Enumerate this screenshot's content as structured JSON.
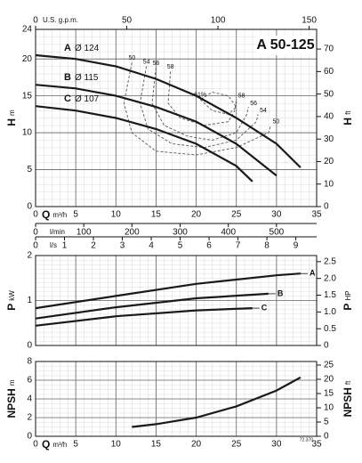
{
  "chart_data": [
    {
      "type": "line",
      "title": "A 50-125",
      "x_label": "Q",
      "x_unit": "m³/h",
      "y_label": "H",
      "y_unit": "m",
      "y2_label": "H",
      "y2_unit": "ft",
      "xlim": [
        0,
        35
      ],
      "xticks": [
        0,
        5,
        10,
        15,
        20,
        25,
        30,
        35
      ],
      "show_xtick_labels": true,
      "ylim": [
        0,
        24
      ],
      "yticks": [
        0,
        5,
        10,
        15,
        20,
        24
      ],
      "y2lim": [
        0,
        78.74
      ],
      "y2ticks": [
        0,
        10,
        20,
        30,
        40,
        50,
        60,
        70
      ],
      "extra_axes": [
        {
          "label": "U.S. g.p.m.",
          "position": "top",
          "xlim": [
            0,
            154.1
          ],
          "xticks": [
            0,
            50,
            100,
            150
          ]
        },
        {
          "label": "l/min",
          "position": "bottom",
          "xlim": [
            0,
            583.3
          ],
          "xticks": [
            0,
            100,
            200,
            300,
            400,
            500
          ]
        },
        {
          "label": "l/s",
          "position": "bottom",
          "xlim": [
            0,
            9.72
          ],
          "xticks": [
            0,
            1,
            2,
            3,
            4,
            5,
            6,
            7,
            8,
            9
          ]
        }
      ],
      "series": [
        {
          "name": "A",
          "label": "Ø 124",
          "color": "#1a1a1a",
          "x": [
            0,
            5,
            10,
            15,
            20,
            25,
            30,
            33
          ],
          "values": [
            20.5,
            20,
            19,
            17.3,
            15,
            12,
            8.5,
            5.3
          ]
        },
        {
          "name": "B",
          "label": "Ø 115",
          "color": "#1a1a1a",
          "x": [
            0,
            5,
            10,
            15,
            20,
            25,
            30
          ],
          "values": [
            16.5,
            16,
            15,
            13.5,
            11.5,
            8.5,
            4.2
          ]
        },
        {
          "name": "C",
          "label": "Ø 107",
          "color": "#1a1a1a",
          "x": [
            0,
            5,
            10,
            15,
            20,
            25,
            27
          ],
          "values": [
            13.6,
            13,
            12,
            10.5,
            8.5,
            5.5,
            3.4
          ]
        }
      ],
      "efficiency_curves": [
        {
          "name": "50",
          "color": "#555555",
          "x": [
            12,
            11,
            12,
            15,
            20,
            25,
            29,
            29.3
          ],
          "values": [
            19.5,
            14,
            10,
            7.5,
            7,
            8,
            10,
            11
          ]
        },
        {
          "name": "54",
          "color": "#555555",
          "x": [
            13.8,
            13,
            14,
            17,
            21,
            25,
            27.5,
            27.7
          ],
          "values": [
            19,
            14,
            10.5,
            8.5,
            8,
            9,
            11.5,
            12.5
          ]
        },
        {
          "name": "56",
          "color": "#555555",
          "x": [
            15,
            14.5,
            16,
            19,
            22,
            25,
            26.3,
            26.5
          ],
          "values": [
            18.8,
            14,
            11,
            9.5,
            9,
            10,
            12.5,
            13.5
          ]
        },
        {
          "name": "58",
          "color": "#555555",
          "x": [
            16.8,
            16.5,
            18,
            21,
            24,
            24.8,
            25
          ],
          "values": [
            18.3,
            14,
            12,
            11,
            11.5,
            13,
            14.5
          ]
        },
        {
          "name": "61%",
          "color": "#555555",
          "x": [
            20.5,
            22,
            24,
            25,
            24,
            22,
            20.5
          ],
          "values": [
            14.5,
            13,
            12.5,
            13.5,
            15,
            15.5,
            14.5
          ]
        }
      ],
      "grid": true
    },
    {
      "type": "line",
      "y_label": "P",
      "y_unit": "kW",
      "y2_label": "P",
      "y2_unit": "HP",
      "xlim": [
        0,
        35
      ],
      "xticks": [
        0,
        5,
        10,
        15,
        20,
        25,
        30,
        35
      ],
      "show_xtick_labels": false,
      "ylim": [
        0,
        2
      ],
      "yticks": [
        0,
        1,
        2
      ],
      "y2lim": [
        0,
        2.682
      ],
      "y2ticks": [
        0,
        0.5,
        {
          "value": 1,
          "label": "1.0"
        },
        1.5,
        {
          "value": 2,
          "label": "2.0"
        },
        2.5
      ],
      "series": [
        {
          "name": "A",
          "color": "#1a1a1a",
          "x": [
            0,
            10,
            20,
            30,
            33
          ],
          "values": [
            0.83,
            1.1,
            1.37,
            1.56,
            1.6
          ]
        },
        {
          "name": "B",
          "color": "#1a1a1a",
          "x": [
            0,
            10,
            20,
            29
          ],
          "values": [
            0.6,
            0.85,
            1.05,
            1.15
          ]
        },
        {
          "name": "C",
          "color": "#1a1a1a",
          "x": [
            0,
            10,
            20,
            27
          ],
          "values": [
            0.44,
            0.65,
            0.78,
            0.83
          ]
        }
      ],
      "grid": true
    },
    {
      "type": "line",
      "x_label": "Q",
      "x_unit": "m³/h",
      "y_label": "NPSH",
      "y_unit": "m",
      "y2_label": "NPSH",
      "y2_unit": "ft",
      "xlim": [
        0,
        35
      ],
      "xticks": [
        0,
        5,
        10,
        15,
        20,
        25,
        30,
        35
      ],
      "show_xtick_labels": true,
      "ylim": [
        0,
        8
      ],
      "yticks": [
        0,
        2,
        4,
        6,
        8
      ],
      "y2lim": [
        0,
        26.25
      ],
      "y2ticks": [
        0,
        5,
        10,
        15,
        20,
        25
      ],
      "series": [
        {
          "color": "#1a1a1a",
          "x": [
            12,
            15,
            20,
            25,
            30,
            33
          ],
          "values": [
            1,
            1.3,
            2,
            3.2,
            4.9,
            6.3
          ]
        }
      ],
      "code": "72.370",
      "grid": true
    }
  ]
}
